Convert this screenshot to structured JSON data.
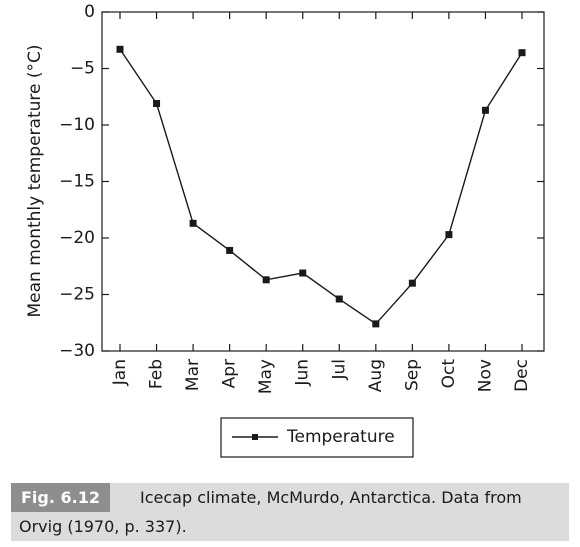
{
  "chart_data": {
    "type": "line",
    "categories": [
      "Jan",
      "Feb",
      "Mar",
      "Apr",
      "May",
      "Jun",
      "Jul",
      "Aug",
      "Sep",
      "Oct",
      "Nov",
      "Dec"
    ],
    "series": [
      {
        "name": "Temperature",
        "values": [
          -3.3,
          -8.1,
          -18.7,
          -21.1,
          -23.7,
          -23.1,
          -25.4,
          -27.6,
          -24.0,
          -19.7,
          -8.7,
          -3.6
        ]
      }
    ],
    "ylabel": "Mean monthly temperature (°C)",
    "xlabel": "",
    "ylim": [
      -30,
      0
    ],
    "yticks": [
      0,
      -5,
      -10,
      -15,
      -20,
      -25,
      -30
    ],
    "ytick_labels": [
      "0",
      "-5",
      "-10",
      "-15",
      "-20",
      "-25",
      "-30"
    ],
    "legend": {
      "position": "bottom-center",
      "labels": [
        "Temperature"
      ]
    },
    "grid": false,
    "marker": "square",
    "line_color": "#1a1a1a"
  },
  "caption": {
    "label": "Fig. 6.12",
    "line1": "Icecap climate, McMurdo, Antarctica. Data from",
    "line2": "Orvig (1970, p. 337)."
  }
}
